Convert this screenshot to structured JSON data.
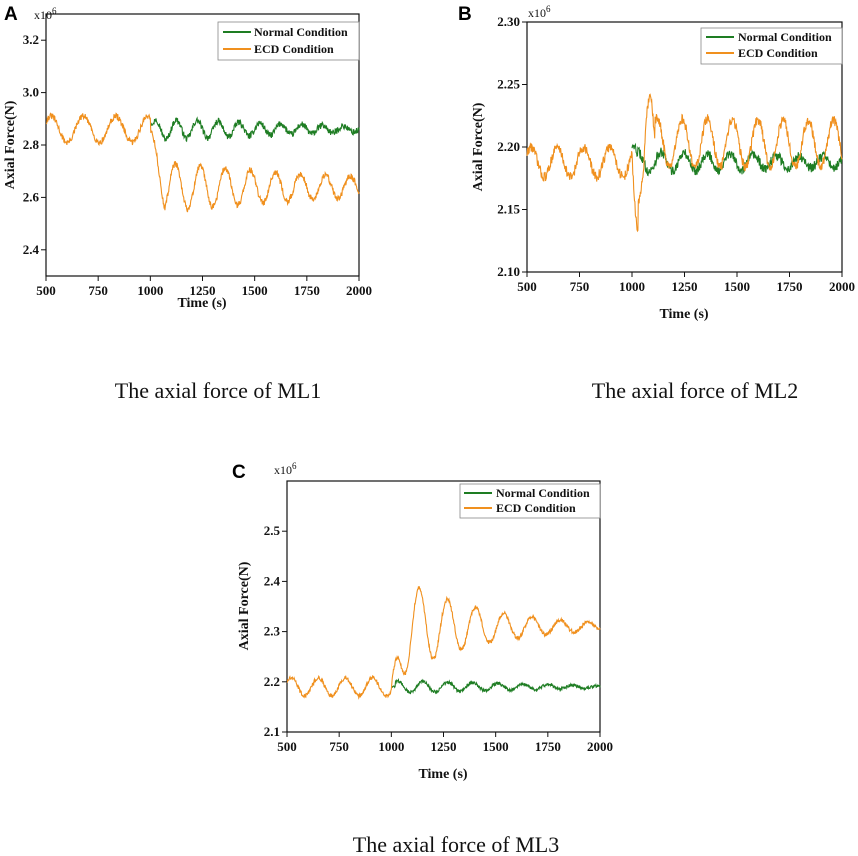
{
  "figure": {
    "captions": [
      "The axial force of ML1",
      "The axial force of ML2",
      "The axial force of ML3"
    ]
  },
  "colors": {
    "normal": "#1e7d23",
    "ecd": "#f0901e",
    "axis": "#111111"
  },
  "chart_data": [
    {
      "type": "line",
      "panel_label": "A",
      "title": "The axial force of ML1",
      "xlabel": "Time (s)",
      "ylabel": "Axial Force(N)",
      "y_multiplier": "x10",
      "y_multiplier_exp": "6",
      "xlim": [
        500,
        2000
      ],
      "ylim": [
        2.3,
        3.3
      ],
      "xticks": [
        500,
        750,
        1000,
        1250,
        1500,
        1750,
        2000
      ],
      "xtick_labels": [
        "500",
        "750",
        "1000",
        "1250",
        "1500",
        "1750",
        "2000"
      ],
      "yticks": [
        2.4,
        2.6,
        2.8,
        3.0,
        3.2
      ],
      "ytick_labels": [
        "2.4",
        "2.6",
        "2.8",
        "3.0",
        "3.2"
      ],
      "legend": {
        "position": "top-right",
        "entries": [
          "Normal Condition",
          "ECD Condition"
        ]
      },
      "event_time": 1000,
      "series": [
        {
          "name": "ECD Condition",
          "color": "#f0901e",
          "x": [
            500,
            1000,
            1010,
            1030,
            1050,
            1080,
            1100,
            1500,
            1750,
            2000
          ],
          "pre_event_mean": 2.86,
          "pre_event_amplitude": 0.05,
          "pre_event_period": 155,
          "post_event_mean": 2.64,
          "post_event_amplitude_start": 0.1,
          "post_event_amplitude_end": 0.04,
          "post_event_period": 120,
          "noise": 0.012,
          "key_points": [
            [
              500,
              2.87
            ],
            [
              530,
              2.92
            ],
            [
              610,
              2.8
            ],
            [
              1000,
              2.88
            ],
            [
              1030,
              2.75
            ],
            [
              1080,
              2.54
            ],
            [
              1140,
              2.73
            ],
            [
              2000,
              2.62
            ]
          ]
        },
        {
          "name": "Normal Condition",
          "color": "#1e7d23",
          "x_start": 1000,
          "x_end": 2000,
          "mean": 2.86,
          "amplitude_start": 0.04,
          "amplitude_end": 0.01,
          "period": 100,
          "noise": 0.012,
          "key_points": [
            [
              1000,
              2.88
            ],
            [
              1050,
              2.91
            ],
            [
              1500,
              2.87
            ],
            [
              2000,
              2.86
            ]
          ]
        }
      ]
    },
    {
      "type": "line",
      "panel_label": "B",
      "title": "The axial force of ML2",
      "xlabel": "Time (s)",
      "ylabel": "Axial Force(N)",
      "y_multiplier": "x10",
      "y_multiplier_exp": "6",
      "xlim": [
        500,
        2000
      ],
      "ylim": [
        2.1,
        2.3
      ],
      "xticks": [
        500,
        750,
        1000,
        1250,
        1500,
        1750,
        2000
      ],
      "xtick_labels": [
        "500",
        "750",
        "1000",
        "1250",
        "1500",
        "1750",
        "2000"
      ],
      "yticks": [
        2.1,
        2.15,
        2.2,
        2.25,
        2.3
      ],
      "ytick_labels": [
        "2.10",
        "2.15",
        "2.20",
        "2.25",
        "2.30"
      ],
      "legend": {
        "position": "top-right",
        "entries": [
          "Normal Condition",
          "ECD Condition"
        ]
      },
      "event_time": 1000,
      "series": [
        {
          "name": "ECD Condition",
          "color": "#f0901e",
          "pre_event_mean": 2.188,
          "pre_event_amplitude": 0.012,
          "pre_event_period": 125,
          "post_event_mean": 2.203,
          "post_event_amplitude_start": 0.02,
          "post_event_amplitude_end": 0.018,
          "post_event_period": 120,
          "noise": 0.004,
          "key_points": [
            [
              500,
              2.18
            ],
            [
              1000,
              2.19
            ],
            [
              1025,
              2.128
            ],
            [
              1100,
              2.24
            ],
            [
              1600,
              2.23
            ],
            [
              2000,
              2.235
            ]
          ]
        },
        {
          "name": "Normal Condition",
          "color": "#1e7d23",
          "x_start": 1000,
          "x_end": 2000,
          "mean": 2.188,
          "amplitude_start": 0.008,
          "amplitude_end": 0.004,
          "period": 110,
          "noise": 0.004,
          "key_points": [
            [
              1000,
              2.2
            ],
            [
              1500,
              2.19
            ],
            [
              2000,
              2.19
            ]
          ]
        }
      ]
    },
    {
      "type": "line",
      "panel_label": "C",
      "title": "The axial force of ML3",
      "xlabel": "Time (s)",
      "ylabel": "Axial Force(N)",
      "y_multiplier": "x10",
      "y_multiplier_exp": "6",
      "xlim": [
        500,
        2000
      ],
      "ylim": [
        2.1,
        2.6
      ],
      "xticks": [
        500,
        750,
        1000,
        1250,
        1500,
        1750,
        2000
      ],
      "xtick_labels": [
        "500",
        "750",
        "1000",
        "1250",
        "1500",
        "1750",
        "2000"
      ],
      "yticks": [
        2.1,
        2.2,
        2.3,
        2.4,
        2.5
      ],
      "ytick_labels": [
        "2.1",
        "2.2",
        "2.3",
        "2.4",
        "2.5"
      ],
      "legend": {
        "position": "top-right",
        "entries": [
          "Normal Condition",
          "ECD Condition"
        ]
      },
      "event_time": 1000,
      "series": [
        {
          "name": "ECD Condition",
          "color": "#f0901e",
          "pre_event_mean": 2.19,
          "pre_event_amplitude": 0.018,
          "pre_event_period": 130,
          "post_event_mean": 2.31,
          "post_event_amplitude_start": 0.11,
          "post_event_amplitude_end": 0.008,
          "post_event_period": 135,
          "noise": 0.004,
          "key_points": [
            [
              500,
              2.18
            ],
            [
              1000,
              2.19
            ],
            [
              1075,
              2.42
            ],
            [
              1130,
              2.23
            ],
            [
              1210,
              2.39
            ],
            [
              2000,
              2.31
            ]
          ]
        },
        {
          "name": "Normal Condition",
          "color": "#1e7d23",
          "x_start": 1000,
          "x_end": 2000,
          "mean": 2.19,
          "amplitude_start": 0.012,
          "amplitude_end": 0.002,
          "period": 120,
          "noise": 0.003,
          "key_points": [
            [
              1000,
              2.19
            ],
            [
              1500,
              2.19
            ],
            [
              2000,
              2.19
            ]
          ]
        }
      ]
    }
  ]
}
